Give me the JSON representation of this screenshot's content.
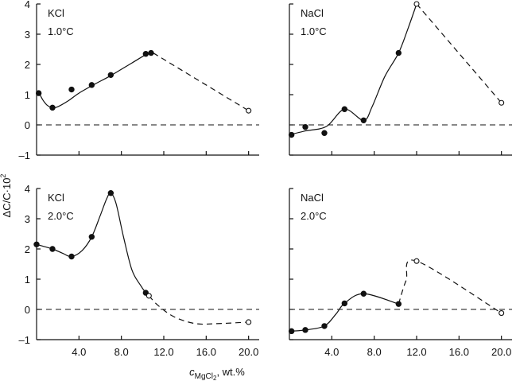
{
  "chart_data": {
    "type": "line",
    "layout": "2x2 panels",
    "xlabel_var": "c",
    "xlabel_sub": "MgCl",
    "xlabel_subsub": "2",
    "xlabel_units": ", wt.%",
    "ylabel_main": "ΔC/C·10",
    "ylabel_sup": "2",
    "x_ticks": [
      "4.0",
      "8.0",
      "12.0",
      "16.0",
      "20.0"
    ],
    "x_tick_values": [
      4,
      8,
      12,
      16,
      20
    ],
    "y_ticks": [
      "4",
      "3",
      "2",
      "1",
      "0",
      "–1"
    ],
    "y_tick_values": [
      4,
      3,
      2,
      1,
      0,
      -1
    ],
    "xlim": [
      0,
      21
    ],
    "ylim": [
      -1,
      4
    ],
    "panels": [
      {
        "salt": "KCl",
        "temperature": "1.0°C",
        "filled_points": [
          [
            0.2,
            1.05
          ],
          [
            1.5,
            0.57
          ],
          [
            3.3,
            1.17
          ],
          [
            5.2,
            1.32
          ],
          [
            7.0,
            1.65
          ],
          [
            10.3,
            2.35
          ],
          [
            10.8,
            2.38
          ]
        ],
        "open_points": [
          [
            20.0,
            0.47
          ]
        ],
        "solid_curve": [
          [
            0,
            1.05
          ],
          [
            0.3,
            1.0
          ],
          [
            0.6,
            0.82
          ],
          [
            1.0,
            0.65
          ],
          [
            1.5,
            0.57
          ],
          [
            2.0,
            0.6
          ],
          [
            3.0,
            0.8
          ],
          [
            4.0,
            1.05
          ],
          [
            5.5,
            1.35
          ],
          [
            7.0,
            1.63
          ],
          [
            9.0,
            2.05
          ],
          [
            10.5,
            2.36
          ],
          [
            11.0,
            2.38
          ]
        ],
        "dashed_curve": [
          [
            11.0,
            2.38
          ],
          [
            20.0,
            0.47
          ]
        ]
      },
      {
        "salt": "NaCl",
        "temperature": "1.0°C",
        "filled_points": [
          [
            0.2,
            -0.33
          ],
          [
            1.5,
            -0.07
          ],
          [
            3.3,
            -0.27
          ],
          [
            5.2,
            0.52
          ],
          [
            7.0,
            0.15
          ],
          [
            10.3,
            2.38
          ]
        ],
        "open_points": [
          [
            12.0,
            4.0
          ],
          [
            20.0,
            0.73
          ]
        ],
        "solid_curve": [
          [
            0,
            -0.33
          ],
          [
            1.5,
            -0.2
          ],
          [
            3.5,
            -0.05
          ],
          [
            5.2,
            0.52
          ],
          [
            7.0,
            0.15
          ],
          [
            7.8,
            0.6
          ],
          [
            9.0,
            1.6
          ],
          [
            10.3,
            2.38
          ],
          [
            11.2,
            3.2
          ],
          [
            12.0,
            4.0
          ]
        ],
        "dashed_curve": [
          [
            12.0,
            4.0
          ],
          [
            20.0,
            0.73
          ]
        ]
      },
      {
        "salt": "KCl",
        "temperature": "2.0°C",
        "filled_points": [
          [
            0.0,
            2.15
          ],
          [
            1.5,
            2.0
          ],
          [
            3.3,
            1.75
          ],
          [
            5.2,
            2.4
          ],
          [
            7.0,
            3.85
          ],
          [
            10.3,
            0.55
          ]
        ],
        "open_points": [
          [
            10.6,
            0.45
          ],
          [
            20.0,
            -0.42
          ]
        ],
        "solid_curve": [
          [
            0,
            2.15
          ],
          [
            1.5,
            2.0
          ],
          [
            2.5,
            1.85
          ],
          [
            3.3,
            1.75
          ],
          [
            4.3,
            1.95
          ],
          [
            5.2,
            2.4
          ],
          [
            6.0,
            3.1
          ],
          [
            6.6,
            3.65
          ],
          [
            7.0,
            3.85
          ],
          [
            7.5,
            3.5
          ],
          [
            8.2,
            2.4
          ],
          [
            9.0,
            1.3
          ],
          [
            9.8,
            0.8
          ],
          [
            10.3,
            0.55
          ],
          [
            10.6,
            0.45
          ]
        ],
        "dashed_curve": [
          [
            10.6,
            0.45
          ],
          [
            11.5,
            0.12
          ],
          [
            13.0,
            -0.25
          ],
          [
            15.0,
            -0.47
          ],
          [
            17.0,
            -0.47
          ],
          [
            20.0,
            -0.42
          ]
        ]
      },
      {
        "salt": "NaCl",
        "temperature": "2.0°C",
        "filled_points": [
          [
            0.2,
            -0.72
          ],
          [
            1.5,
            -0.68
          ],
          [
            3.3,
            -0.55
          ],
          [
            5.2,
            0.2
          ],
          [
            7.0,
            0.52
          ],
          [
            10.3,
            0.18
          ]
        ],
        "open_points": [
          [
            12.0,
            1.6
          ],
          [
            20.0,
            -0.12
          ]
        ],
        "solid_curve": [
          [
            0,
            -0.72
          ],
          [
            1.5,
            -0.68
          ],
          [
            3.3,
            -0.55
          ],
          [
            4.4,
            -0.15
          ],
          [
            5.2,
            0.2
          ],
          [
            7.0,
            0.52
          ],
          [
            10.3,
            0.18
          ]
        ],
        "dashed_curve": [
          [
            10.3,
            0.18
          ],
          [
            11.0,
            0.95
          ],
          [
            12.0,
            1.6
          ],
          [
            20.0,
            -0.12
          ]
        ]
      }
    ]
  }
}
